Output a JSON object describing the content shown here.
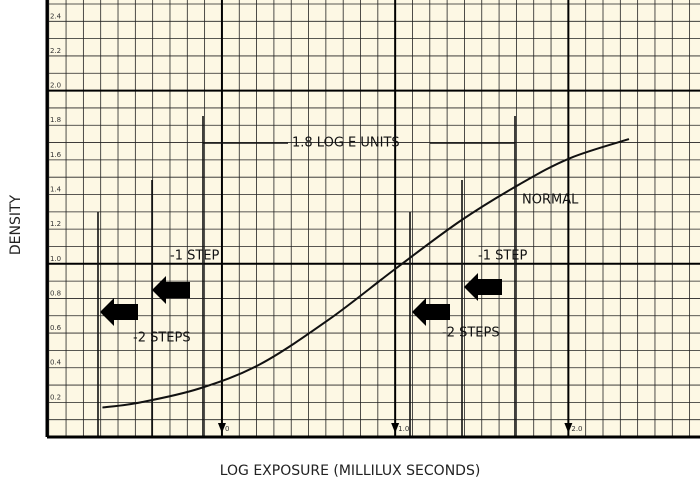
{
  "chart_data": {
    "type": "line",
    "ylabel": "DENSITY",
    "xlabel": "LOG EXPOSURE (MILLILUX SECONDS)",
    "annotations": [
      "1.8 LOG E UNITS",
      "NORMAL",
      "-1 STEP",
      "-2 STEPS",
      "-1 STEP",
      "-2 STEPS"
    ],
    "series": [
      {
        "color": "#111111",
        "x": [
          -0.69,
          -0.47,
          -0.13,
          0.22,
          0.62,
          1.0,
          1.38,
          1.72,
          2.01,
          2.35
        ],
        "values": [
          0.17,
          0.2,
          0.28,
          0.42,
          0.68,
          0.97,
          1.25,
          1.46,
          1.61,
          1.72
        ]
      }
    ],
    "xlim": [
      -1.01,
      2.76
    ],
    "ylim": [
      0,
      2.5
    ],
    "xticks": [
      0,
      {
        "value": 1,
        "label": "1.0"
      },
      {
        "value": 2,
        "label": "2.0"
      }
    ],
    "yticks": [
      0.2,
      0.4,
      0.6,
      0.8,
      {
        "value": 1,
        "label": "1.0"
      },
      1.2,
      1.4,
      1.6,
      1.8,
      {
        "value": 2,
        "label": "2.0"
      },
      2.2,
      2.4
    ],
    "grid": true
  }
}
